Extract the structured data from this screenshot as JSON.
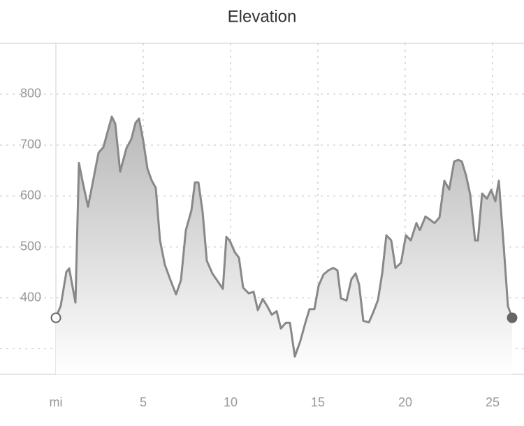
{
  "chart_data": {
    "type": "area",
    "title": "Elevation",
    "x": [
      0,
      0.28,
      0.6,
      0.76,
      1.12,
      1.32,
      1.52,
      1.84,
      2.44,
      2.72,
      3.0,
      3.2,
      3.4,
      3.68,
      4.04,
      4.32,
      4.56,
      4.76,
      5.0,
      5.24,
      5.48,
      5.72,
      5.96,
      6.24,
      6.56,
      6.88,
      7.16,
      7.44,
      7.76,
      7.96,
      8.16,
      8.4,
      8.64,
      8.96,
      9.28,
      9.56,
      9.76,
      9.96,
      10.24,
      10.48,
      10.72,
      11.04,
      11.32,
      11.56,
      11.84,
      12.08,
      12.36,
      12.64,
      12.88,
      13.16,
      13.4,
      13.68,
      14.0,
      14.28,
      14.52,
      14.8,
      15.04,
      15.32,
      15.6,
      15.88,
      16.12,
      16.32,
      16.64,
      16.92,
      17.16,
      17.36,
      17.6,
      17.92,
      18.16,
      18.44,
      18.68,
      18.92,
      19.2,
      19.44,
      19.76,
      20.04,
      20.32,
      20.64,
      20.84,
      21.16,
      21.4,
      21.68,
      21.96,
      22.24,
      22.52,
      22.8,
      23.04,
      23.24,
      23.48,
      23.72,
      24.0,
      24.16,
      24.4,
      24.68,
      24.92,
      25.16,
      25.36,
      25.64,
      25.88,
      26.12
    ],
    "values": [
      361,
      385,
      451,
      458,
      391,
      665,
      630,
      579,
      685,
      696,
      731,
      756,
      742,
      648,
      694,
      712,
      744,
      752,
      709,
      654,
      631,
      616,
      513,
      465,
      435,
      407,
      435,
      533,
      572,
      627,
      627,
      569,
      473,
      448,
      432,
      418,
      520,
      512,
      490,
      479,
      420,
      409,
      412,
      376,
      398,
      385,
      367,
      374,
      340,
      351,
      351,
      285,
      316,
      351,
      378,
      378,
      424,
      446,
      454,
      459,
      454,
      399,
      395,
      437,
      448,
      426,
      355,
      352,
      371,
      396,
      448,
      523,
      513,
      459,
      469,
      523,
      513,
      547,
      533,
      560,
      554,
      547,
      558,
      630,
      613,
      668,
      671,
      668,
      641,
      603,
      513,
      513,
      605,
      595,
      612,
      590,
      630,
      501,
      384,
      361
    ],
    "color": "#888888",
    "xlim": [
      -3.2,
      26.8
    ],
    "ylim": [
      250,
      900
    ],
    "xticks": [
      {
        "value": 0,
        "label": "mi"
      },
      5,
      10,
      15,
      20,
      25
    ],
    "yticks": [
      400,
      500,
      600,
      700,
      800
    ],
    "ygrid": [
      300,
      400,
      500,
      600,
      700,
      800
    ],
    "grid": true
  }
}
